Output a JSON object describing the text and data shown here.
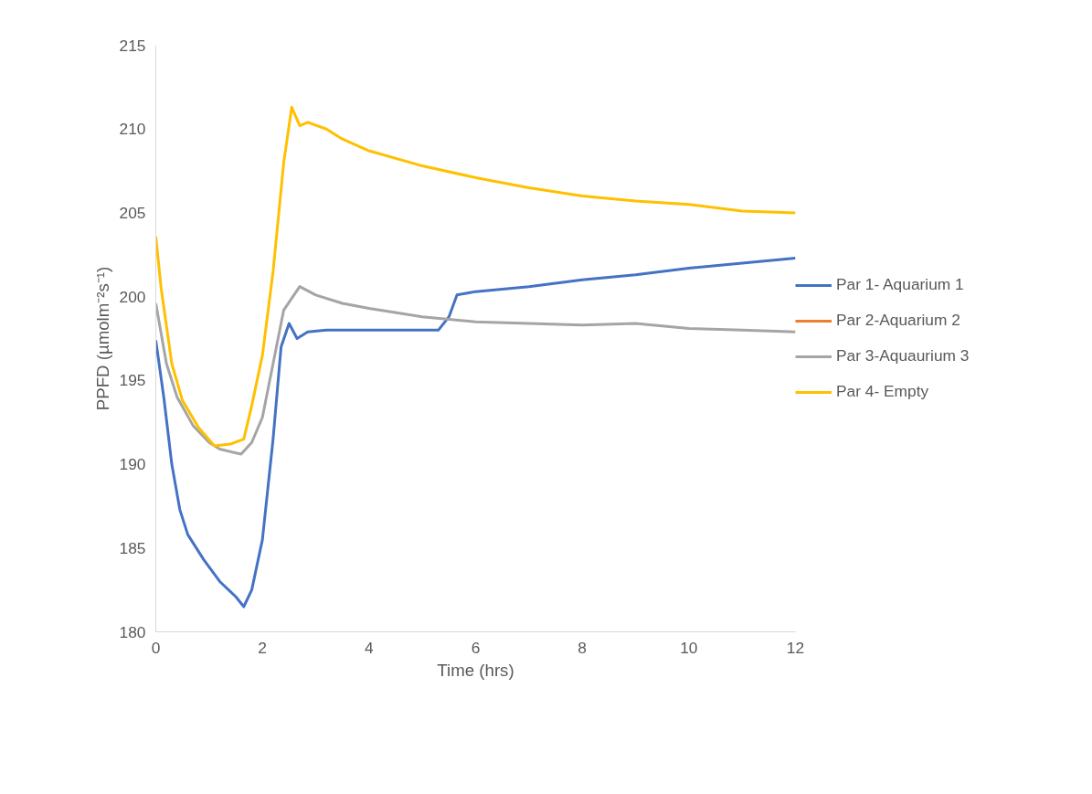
{
  "chart_data": {
    "type": "line",
    "xlabel": "Time (hrs)",
    "ylabel": "PPFD (µmolm⁻²s⁻¹)",
    "xlim": [
      0,
      12
    ],
    "xticks": [
      0,
      2,
      4,
      6,
      8,
      10,
      12
    ],
    "ylim": [
      180,
      215
    ],
    "yticks": [
      180,
      185,
      190,
      195,
      200,
      205,
      210,
      215
    ],
    "grid": false,
    "legend": "right",
    "line_style": "solid",
    "marker": "none",
    "series": [
      {
        "name": "Par 1- Aquarium 1",
        "color": "#4472c4",
        "x": [
          0,
          0.15,
          0.3,
          0.45,
          0.6,
          0.9,
          1.2,
          1.5,
          1.65,
          1.8,
          2.0,
          2.2,
          2.35,
          2.5,
          2.65,
          2.85,
          3.2,
          4,
          5,
          5.3,
          5.5,
          5.65,
          6,
          7,
          8,
          9,
          10,
          11,
          12
        ],
        "values": [
          197.4,
          194,
          190,
          187.3,
          185.8,
          184.3,
          183.0,
          182.1,
          181.5,
          182.5,
          185.5,
          191.5,
          197,
          198.4,
          197.5,
          197.9,
          198.0,
          198.0,
          198.0,
          198.0,
          198.8,
          200.1,
          200.3,
          200.6,
          201.0,
          201.3,
          201.7,
          202.0,
          202.3
        ]
      },
      {
        "name": "Par 2-Aquarium 2",
        "color": "#ed7d31"
      },
      {
        "name": "Par 3-Aquaurium 3",
        "color": "#a5a5a5",
        "x": [
          0,
          0.2,
          0.4,
          0.7,
          1.0,
          1.2,
          1.6,
          1.8,
          2.0,
          2.2,
          2.4,
          2.7,
          3.0,
          3.5,
          4.0,
          5,
          6,
          7,
          8,
          9,
          10,
          11,
          12
        ],
        "values": [
          199.6,
          196,
          194,
          192.3,
          191.3,
          190.9,
          190.6,
          191.3,
          192.8,
          196,
          199.2,
          200.6,
          200.1,
          199.6,
          199.3,
          198.8,
          198.5,
          198.4,
          198.3,
          198.4,
          198.1,
          198.0,
          197.9
        ]
      },
      {
        "name": "Par 4- Empty",
        "color": "#ffc000",
        "x": [
          0,
          0.1,
          0.3,
          0.5,
          0.8,
          1.1,
          1.4,
          1.65,
          1.8,
          2.0,
          2.2,
          2.4,
          2.55,
          2.7,
          2.85,
          3.2,
          3.5,
          4,
          5,
          6,
          7,
          8,
          9,
          10,
          11,
          12
        ],
        "values": [
          203.6,
          200.5,
          196,
          193.8,
          192.2,
          191.1,
          191.2,
          191.5,
          193.5,
          196.5,
          201.5,
          208,
          211.3,
          210.2,
          210.4,
          210,
          209.4,
          208.7,
          207.8,
          207.1,
          206.5,
          206.0,
          205.7,
          205.5,
          205.1,
          205.0
        ]
      }
    ]
  }
}
